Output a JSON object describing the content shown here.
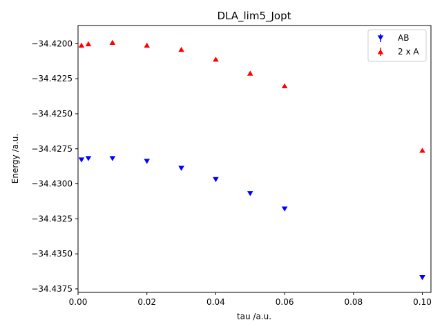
{
  "chart_data": {
    "type": "scatter",
    "title": "DLA_lim5_Jopt",
    "xlabel": "tau /a.u.",
    "ylabel": "Energy /a.u.",
    "xlim": [
      0.0,
      0.1025
    ],
    "ylim": [
      -34.43775,
      -34.4187
    ],
    "xticks": [
      "0.00",
      "0.02",
      "0.04",
      "0.06",
      "0.08",
      "0.10"
    ],
    "yticks": [
      "−34.4200",
      "−34.4225",
      "−34.4250",
      "−34.4275",
      "−34.4300",
      "−34.4325",
      "−34.4350",
      "−34.4375"
    ],
    "legend_position": "top-right",
    "grid": false,
    "series": [
      {
        "name": "AB",
        "marker": "triangle-down",
        "color": "#0000ff",
        "points": [
          [
            0.001,
            -34.4283
          ],
          [
            0.003,
            -34.4282
          ],
          [
            0.01,
            -34.4282
          ],
          [
            0.02,
            -34.4284
          ],
          [
            0.03,
            -34.4289
          ],
          [
            0.04,
            -34.4297
          ],
          [
            0.05,
            -34.4307
          ],
          [
            0.06,
            -34.4318
          ],
          [
            0.1,
            -34.4367
          ]
        ]
      },
      {
        "name": "2 x A",
        "marker": "triangle-up",
        "color": "#ff0000",
        "points": [
          [
            0.001,
            -34.4201
          ],
          [
            0.003,
            -34.42
          ],
          [
            0.01,
            -34.4199
          ],
          [
            0.02,
            -34.4201
          ],
          [
            0.03,
            -34.4204
          ],
          [
            0.04,
            -34.4211
          ],
          [
            0.05,
            -34.4221
          ],
          [
            0.06,
            -34.423
          ],
          [
            0.1,
            -34.4276
          ]
        ]
      }
    ]
  }
}
